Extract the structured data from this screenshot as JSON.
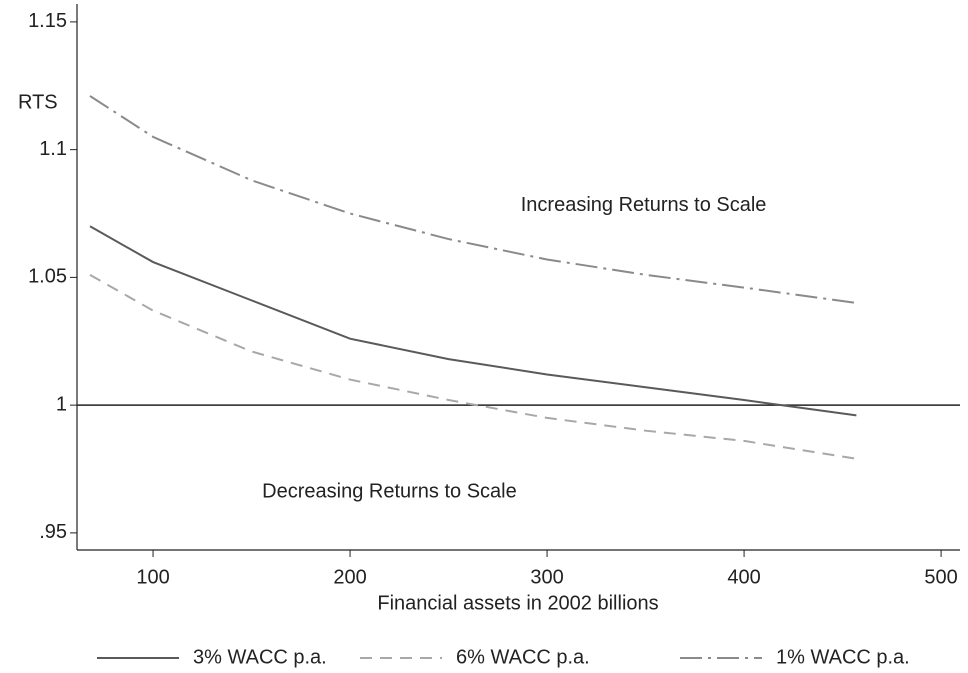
{
  "chart_data": {
    "type": "line",
    "y_label": "RTS",
    "x_label": "Financial assets in 2002 billions",
    "x": [
      68,
      100,
      150,
      200,
      250,
      300,
      350,
      400,
      457
    ],
    "series": [
      {
        "name": "3% WACC p.a.",
        "color": "#5a5a5a",
        "dash": "solid",
        "values": [
          1.07,
          1.056,
          1.041,
          1.026,
          1.018,
          1.012,
          1.007,
          1.002,
          0.996
        ]
      },
      {
        "name": "6% WACC p.a.",
        "color": "#a8a8a8",
        "dash": "dashed",
        "values": [
          1.051,
          1.037,
          1.021,
          1.01,
          1.002,
          0.995,
          0.99,
          0.986,
          0.979
        ]
      },
      {
        "name": "1% WACC p.a.",
        "color": "#8a8a8a",
        "dash": "dashdot",
        "values": [
          1.121,
          1.105,
          1.088,
          1.075,
          1.065,
          1.057,
          1.051,
          1.046,
          1.04
        ]
      }
    ],
    "reference_line": 1,
    "annotations": [
      {
        "text": "Increasing Returns to Scale",
        "x": 349,
        "y": 1.078
      },
      {
        "text": "Decreasing Returns to Scale",
        "x": 220,
        "y": 0.966
      }
    ],
    "xlim": [
      61.4,
      509.6
    ],
    "ylim": [
      0.9433,
      1.157
    ],
    "xticks": [
      100,
      200,
      300,
      400,
      500
    ],
    "yticks": [
      {
        "value": 0.95,
        "label": ".95"
      },
      1,
      1.05,
      1.1,
      1.15
    ],
    "grid": false
  }
}
